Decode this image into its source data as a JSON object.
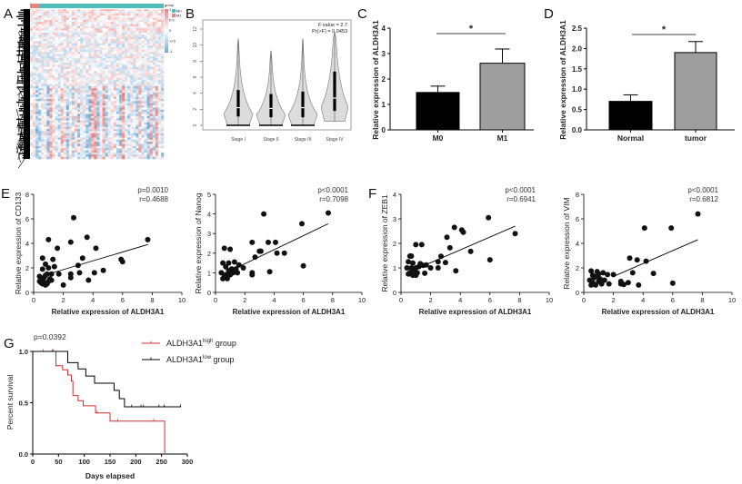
{
  "panel_letters": {
    "A": "A",
    "B": "B",
    "C": "C",
    "D": "D",
    "E": "E",
    "F": "F",
    "G": "G"
  },
  "colors": {
    "m0": "#4dbdbf",
    "m1": "#e8837f",
    "high": "#e8837f",
    "low": "#6fa8d6",
    "bar_black": "#000000",
    "bar_gray": "#9e9e9e",
    "km_high": "#d32f2f",
    "km_low": "#000000",
    "violin": "#dcdcdc"
  },
  "chart_data": [
    {
      "type": "heatmap",
      "panel": "A",
      "legend": {
        "title": "group",
        "groups": [
          "M0",
          "M1"
        ],
        "colorbar_ticks": [
          "1",
          "0.5",
          "0",
          "-0.5",
          "-1"
        ]
      },
      "row_dendrogram": true
    },
    {
      "type": "violin",
      "panel": "B",
      "categories": [
        "Stage I",
        "Stage II",
        "Stage III",
        "Stage IV"
      ],
      "ylim": [
        0,
        12
      ],
      "yticks": [
        "0",
        "2",
        "4",
        "6",
        "8",
        "10",
        "12"
      ],
      "annotation": [
        "F value = 2.7",
        "Pr(>F) = 0.0453"
      ],
      "stats": [
        {
          "min": 0,
          "q1": 1.1,
          "median": 2.2,
          "q3": 4.4,
          "max": 10.8
        },
        {
          "min": 0,
          "q1": 1.0,
          "median": 2.1,
          "q3": 3.9,
          "max": 9.3
        },
        {
          "min": 0,
          "q1": 1.0,
          "median": 2.2,
          "q3": 4.2,
          "max": 10.8
        },
        {
          "min": 0.5,
          "q1": 1.8,
          "median": 3.4,
          "q3": 6.7,
          "max": 11.6
        }
      ]
    },
    {
      "type": "bar",
      "panel": "C",
      "categories": [
        "M0",
        "M1"
      ],
      "values": [
        1.47,
        2.62
      ],
      "error_upper": [
        1.72,
        3.18
      ],
      "ylabel": "Relative expression of ALDH3A1",
      "ylim": [
        0,
        4
      ],
      "yticks": [
        "0",
        "1",
        "2",
        "3",
        "4"
      ],
      "significance": "*"
    },
    {
      "type": "bar",
      "panel": "D",
      "categories": [
        "Normal",
        "tumor"
      ],
      "values": [
        0.7,
        1.9
      ],
      "error_upper": [
        0.86,
        2.17
      ],
      "ylabel": "Relative expression of ALDH3A1",
      "ylim": [
        0,
        2.5
      ],
      "yticks": [
        "0.0",
        "0.5",
        "1.0",
        "1.5",
        "2.0",
        "2.5"
      ],
      "significance": "*"
    },
    {
      "type": "scatter",
      "panel": "E",
      "xlabel": "Relative expression of ALDH3A1",
      "ylabel": "Relative expression of CD133",
      "xlim": [
        0,
        10
      ],
      "ylim": [
        0,
        8
      ],
      "xticks": [
        "0",
        "2",
        "4",
        "6",
        "8",
        "10"
      ],
      "yticks": [
        "0",
        "2",
        "4",
        "6",
        "8"
      ],
      "stats": [
        "p=0.0010",
        "r=0.4688"
      ],
      "fit": [
        [
          1.0,
          1.5
        ],
        [
          7.7,
          3.9
        ]
      ],
      "points": [
        [
          7.7,
          4.3
        ],
        [
          2.7,
          6.1
        ],
        [
          3.6,
          4.5
        ],
        [
          1.0,
          4.3
        ],
        [
          2.5,
          4.1
        ],
        [
          4.2,
          3.6
        ],
        [
          1.6,
          3.6
        ],
        [
          0.6,
          2.8
        ],
        [
          3.3,
          2.8
        ],
        [
          1.3,
          2.7
        ],
        [
          5.9,
          2.7
        ],
        [
          6.0,
          2.5
        ],
        [
          0.8,
          2.3
        ],
        [
          1.0,
          2.0
        ],
        [
          1.4,
          2.1
        ],
        [
          3.0,
          2.2
        ],
        [
          0.6,
          1.9
        ],
        [
          4.7,
          1.8
        ],
        [
          1.7,
          1.5
        ],
        [
          3.1,
          1.6
        ],
        [
          4.1,
          1.6
        ],
        [
          2.5,
          1.5
        ],
        [
          2.5,
          1.2
        ],
        [
          3.7,
          1.0
        ],
        [
          2.0,
          0.6
        ],
        [
          0.4,
          1.3
        ],
        [
          0.5,
          1.0
        ],
        [
          0.7,
          0.8
        ],
        [
          0.9,
          0.7
        ],
        [
          0.6,
          0.7
        ],
        [
          1.1,
          1.1
        ],
        [
          1.2,
          1.5
        ],
        [
          0.8,
          1.4
        ],
        [
          0.5,
          0.8
        ],
        [
          1.0,
          0.9
        ],
        [
          0.7,
          1.2
        ],
        [
          0.9,
          1.5
        ],
        [
          1.2,
          1.0
        ],
        [
          0.4,
          0.9
        ],
        [
          0.8,
          0.6
        ]
      ]
    },
    {
      "type": "scatter",
      "panel": "E",
      "xlabel": "Relative expression of ALDH3A1",
      "ylabel": "Relative expression of Nanog",
      "xlim": [
        0,
        10
      ],
      "ylim": [
        0,
        5
      ],
      "xticks": [
        "0",
        "2",
        "4",
        "6",
        "8",
        "10"
      ],
      "yticks": [
        "0",
        "1",
        "2",
        "3",
        "4",
        "5"
      ],
      "stats": [
        "p<0.0001",
        "r=0.7098"
      ],
      "fit": [
        [
          1.0,
          1.1
        ],
        [
          7.7,
          3.5
        ]
      ],
      "points": [
        [
          7.7,
          4.05
        ],
        [
          3.3,
          4.0
        ],
        [
          5.9,
          3.5
        ],
        [
          3.1,
          2.1
        ],
        [
          3.0,
          2.1
        ],
        [
          2.5,
          2.55
        ],
        [
          3.6,
          2.55
        ],
        [
          4.1,
          2.55
        ],
        [
          4.2,
          2.0
        ],
        [
          4.7,
          2.0
        ],
        [
          2.7,
          1.8
        ],
        [
          6.0,
          1.35
        ],
        [
          3.7,
          1.05
        ],
        [
          2.5,
          1.0
        ],
        [
          2.5,
          0.9
        ],
        [
          0.6,
          2.25
        ],
        [
          1.0,
          2.2
        ],
        [
          0.5,
          1.5
        ],
        [
          0.9,
          1.5
        ],
        [
          1.3,
          1.55
        ],
        [
          1.6,
          1.4
        ],
        [
          1.9,
          1.25
        ],
        [
          0.7,
          1.3
        ],
        [
          1.1,
          1.2
        ],
        [
          0.4,
          1.0
        ],
        [
          0.6,
          0.8
        ],
        [
          0.8,
          0.7
        ],
        [
          1.0,
          0.9
        ],
        [
          1.2,
          1.0
        ],
        [
          1.5,
          1.0
        ],
        [
          0.5,
          0.7
        ],
        [
          0.9,
          1.1
        ],
        [
          0.7,
          0.9
        ],
        [
          1.4,
          1.2
        ]
      ]
    },
    {
      "type": "scatter",
      "panel": "F",
      "xlabel": "Relative expression of ALDH3A1",
      "ylabel": "Relative expression of ZEB1",
      "xlim": [
        0,
        10
      ],
      "ylim": [
        0,
        4
      ],
      "xticks": [
        "0",
        "2",
        "4",
        "6",
        "8",
        "10"
      ],
      "yticks": [
        "0",
        "1",
        "2",
        "3",
        "4"
      ],
      "stats": [
        "p<0.0001",
        "r=0.6941"
      ],
      "fit": [
        [
          1.0,
          0.95
        ],
        [
          7.7,
          2.7
        ]
      ],
      "points": [
        [
          5.9,
          3.05
        ],
        [
          3.6,
          2.65
        ],
        [
          4.1,
          2.55
        ],
        [
          4.2,
          2.45
        ],
        [
          3.1,
          2.25
        ],
        [
          7.7,
          2.4
        ],
        [
          3.3,
          1.82
        ],
        [
          1.0,
          1.95
        ],
        [
          1.4,
          1.95
        ],
        [
          4.7,
          1.67
        ],
        [
          2.7,
          1.47
        ],
        [
          6.0,
          1.33
        ],
        [
          2.5,
          1.25
        ],
        [
          3.0,
          1.22
        ],
        [
          2.5,
          1.0
        ],
        [
          2.0,
          1.0
        ],
        [
          3.7,
          0.88
        ],
        [
          1.6,
          0.78
        ],
        [
          1.7,
          1.12
        ],
        [
          1.3,
          1.17
        ],
        [
          0.6,
          1.48
        ],
        [
          0.7,
          1.48
        ],
        [
          0.5,
          1.25
        ],
        [
          0.8,
          1.2
        ],
        [
          0.4,
          1.0
        ],
        [
          0.6,
          0.8
        ],
        [
          0.8,
          0.7
        ],
        [
          0.9,
          0.9
        ],
        [
          1.0,
          1.0
        ],
        [
          1.1,
          0.8
        ],
        [
          1.2,
          1.05
        ],
        [
          0.5,
          0.75
        ],
        [
          0.7,
          1.0
        ],
        [
          1.0,
          0.7
        ],
        [
          1.5,
          1.1
        ]
      ]
    },
    {
      "type": "scatter",
      "panel": "F",
      "xlabel": "Relative expression of ALDH3A1",
      "ylabel": "Relative expression of VIM",
      "xlim": [
        0,
        10
      ],
      "ylim": [
        0,
        8
      ],
      "xticks": [
        "0",
        "2",
        "4",
        "6",
        "8",
        "10"
      ],
      "yticks": [
        "0",
        "2",
        "4",
        "6",
        "8"
      ],
      "stats": [
        "p<0.0001",
        "r=0.6812"
      ],
      "fit": [
        [
          2.0,
          1.3
        ],
        [
          7.7,
          4.3
        ]
      ],
      "points": [
        [
          7.7,
          6.4
        ],
        [
          4.1,
          5.25
        ],
        [
          5.9,
          5.25
        ],
        [
          3.1,
          2.8
        ],
        [
          3.6,
          2.65
        ],
        [
          4.2,
          2.55
        ],
        [
          3.3,
          1.6
        ],
        [
          4.7,
          1.55
        ],
        [
          2.0,
          1.45
        ],
        [
          1.6,
          1.45
        ],
        [
          0.5,
          1.75
        ],
        [
          0.9,
          1.7
        ],
        [
          1.3,
          1.6
        ],
        [
          2.5,
          0.9
        ],
        [
          2.5,
          0.7
        ],
        [
          2.7,
          0.65
        ],
        [
          3.0,
          0.8
        ],
        [
          3.7,
          0.6
        ],
        [
          6.0,
          0.75
        ],
        [
          0.4,
          1.0
        ],
        [
          0.6,
          0.8
        ],
        [
          0.7,
          1.2
        ],
        [
          0.8,
          0.6
        ],
        [
          1.0,
          0.9
        ],
        [
          1.1,
          1.1
        ],
        [
          1.2,
          0.7
        ],
        [
          1.4,
          1.0
        ],
        [
          0.5,
          0.6
        ],
        [
          0.6,
          1.4
        ],
        [
          0.9,
          1.3
        ],
        [
          1.7,
          0.7
        ],
        [
          1.0,
          1.5
        ]
      ]
    },
    {
      "type": "line",
      "subtype": "kaplan-meier",
      "panel": "G",
      "xlabel": "Days elapsed",
      "ylabel": "Percent survival",
      "xlim": [
        0,
        300
      ],
      "ylim": [
        0,
        1
      ],
      "xticks": [
        "0",
        "50",
        "100",
        "150",
        "200",
        "250",
        "300"
      ],
      "yticks": [
        "0.0",
        "0.5",
        "1.0"
      ],
      "pvalue": "p=0.0392",
      "legend_position": "top-right",
      "series": [
        {
          "name": "ALDH3A1",
          "sup": "high",
          "suffix": " group",
          "color_key": "km_high",
          "steps": [
            [
              0,
              1.0
            ],
            [
              45,
              0.86
            ],
            [
              58,
              0.82
            ],
            [
              68,
              0.77
            ],
            [
              75,
              0.71
            ],
            [
              78,
              0.57
            ],
            [
              88,
              0.52
            ],
            [
              98,
              0.47
            ],
            [
              122,
              0.4
            ],
            [
              150,
              0.32
            ],
            [
              256,
              0.0
            ]
          ],
          "end": 256,
          "censored": [
            [
              20,
              1.0
            ],
            [
              38,
              1.0
            ],
            [
              40,
              1.0
            ],
            [
              125,
              0.4
            ],
            [
              165,
              0.32
            ],
            [
              235,
              0.32
            ]
          ]
        },
        {
          "name": "ALDH3A1",
          "sup": "low",
          "suffix": " group",
          "color_key": "km_low",
          "steps": [
            [
              0,
              1.0
            ],
            [
              68,
              0.89
            ],
            [
              88,
              0.83
            ],
            [
              103,
              0.76
            ],
            [
              120,
              0.69
            ],
            [
              158,
              0.62
            ],
            [
              168,
              0.54
            ],
            [
              178,
              0.46
            ]
          ],
          "end": 287,
          "censored": [
            [
              192,
              0.46
            ],
            [
              210,
              0.46
            ],
            [
              215,
              0.46
            ],
            [
              245,
              0.46
            ],
            [
              255,
              0.46
            ],
            [
              287,
              0.46
            ]
          ]
        }
      ]
    }
  ]
}
